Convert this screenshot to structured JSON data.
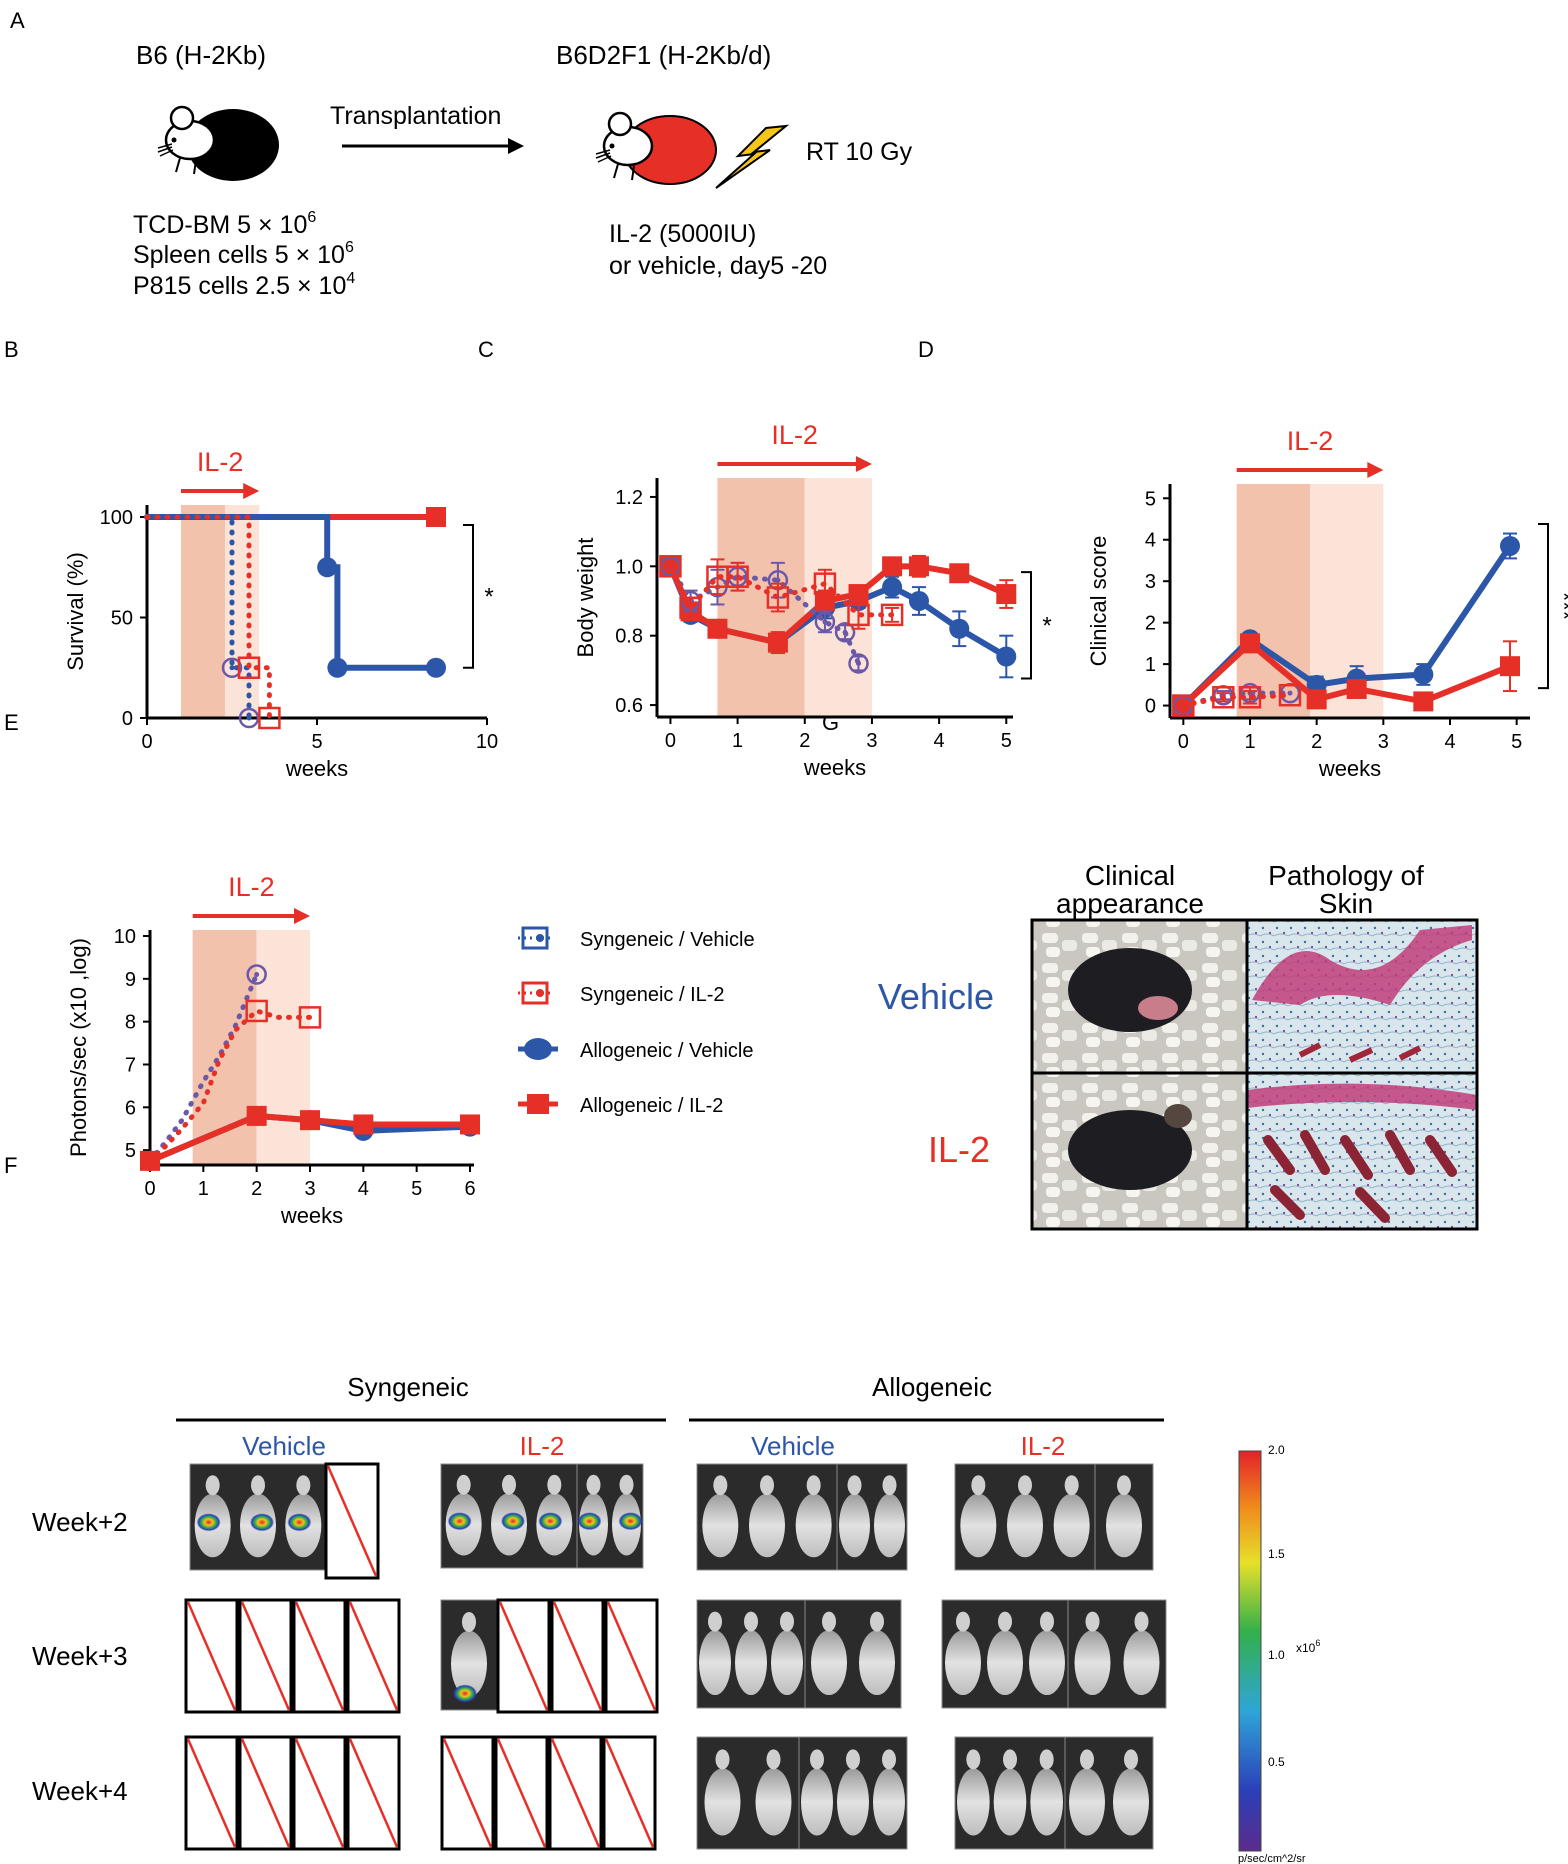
{
  "colors": {
    "blue": "#2c56a8",
    "red": "#e63027",
    "purple": "#6b59a8",
    "shade_dark": "#f3c2ad",
    "shade_light": "#fbe3d8",
    "bolt": "#f5c518"
  },
  "panel_letters": {
    "a": "A",
    "b": "B",
    "c": "C",
    "d": "D",
    "e": "E",
    "f": "F",
    "g": "G"
  },
  "schematic": {
    "donor": "B6 (H-2Kb)",
    "recipient": "B6D2F1 (H-2Kb/d)",
    "arrow_label": "Transplantation",
    "radiation": "RT 10 Gy",
    "cells": [
      {
        "name": "TCD-BM 5 × 10",
        "exp": "6"
      },
      {
        "name": "Spleen cells 5 × 10",
        "exp": "6"
      },
      {
        "name": "P815 cells 2.5 × 10",
        "exp": "4"
      }
    ],
    "treatment_lines": [
      "IL-2 (5000IU)",
      "or vehicle, day5 -20"
    ]
  },
  "chart_data": [
    {
      "id": "B",
      "type": "line",
      "title": "IL-2",
      "xlabel": "weeks",
      "ylabel": "Survival (%)",
      "xlim": [
        0,
        10
      ],
      "ylim": [
        0,
        100
      ],
      "xticks": [
        "0",
        "5",
        "10"
      ],
      "yticks": [
        "0",
        "50",
        "100"
      ],
      "significance": "*",
      "il2_window": {
        "dark": [
          1,
          2.3
        ],
        "light": [
          2.3,
          3.3
        ],
        "arrow": [
          1,
          3.3
        ]
      },
      "series": [
        {
          "name": "Allogeneic / IL-2",
          "style": "step-solid",
          "marker": "square-filled",
          "x": [
            0,
            8.5
          ],
          "y": [
            100,
            100
          ]
        },
        {
          "name": "Allogeneic / Vehicle",
          "style": "step-solid",
          "marker": "circle-filled",
          "x": [
            0,
            5.3,
            5.6,
            8.5
          ],
          "y": [
            100,
            75,
            25,
            25
          ]
        },
        {
          "name": "Syngeneic / Vehicle",
          "style": "step-dotted",
          "marker": "circle-open",
          "x": [
            0,
            2.5,
            3.0
          ],
          "y": [
            100,
            25,
            0
          ]
        },
        {
          "name": "Syngeneic / IL-2",
          "style": "step-dotted",
          "marker": "square-open",
          "x": [
            0,
            3.0,
            3.6
          ],
          "y": [
            100,
            25,
            0
          ]
        }
      ]
    },
    {
      "id": "C",
      "type": "line",
      "title": "IL-2",
      "xlabel": "weeks",
      "ylabel": "Body weight",
      "xlim": [
        -0.2,
        5.1
      ],
      "ylim": [
        0.58,
        1.22
      ],
      "xticks": [
        "0",
        "1",
        "2",
        "3",
        "4",
        "5"
      ],
      "yticks": [
        "0.6",
        "0.8",
        "1.0",
        "1.2"
      ],
      "significance": "*",
      "il2_window": {
        "dark": [
          0.7,
          2.0
        ],
        "light": [
          2.0,
          3.0
        ],
        "arrow": [
          0.7,
          3.0
        ]
      },
      "series": [
        {
          "name": "Allogeneic / Vehicle",
          "x": [
            0,
            0.3,
            0.7,
            1.6,
            2.3,
            2.8,
            3.3,
            3.7,
            4.3,
            5.0
          ],
          "y": [
            1.0,
            0.86,
            0.82,
            0.78,
            0.88,
            0.9,
            0.94,
            0.9,
            0.82,
            0.74
          ],
          "err": [
            0.01,
            0.02,
            0.02,
            0.03,
            0.03,
            0.02,
            0.03,
            0.04,
            0.05,
            0.06
          ]
        },
        {
          "name": "Allogeneic / IL-2",
          "x": [
            0,
            0.3,
            0.7,
            1.6,
            2.3,
            2.8,
            3.3,
            3.7,
            4.3,
            5.0
          ],
          "y": [
            1.0,
            0.87,
            0.82,
            0.78,
            0.9,
            0.92,
            1.0,
            1.0,
            0.98,
            0.92
          ],
          "err": [
            0.01,
            0.02,
            0.02,
            0.03,
            0.03,
            0.02,
            0.02,
            0.03,
            0.02,
            0.04
          ]
        },
        {
          "name": "Syngeneic / Vehicle",
          "x": [
            0,
            0.3,
            0.7,
            1.0,
            1.6,
            2.3,
            2.6,
            2.8
          ],
          "y": [
            1.0,
            0.9,
            0.94,
            0.97,
            0.96,
            0.84,
            0.81,
            0.72
          ],
          "err": [
            0.01,
            0.03,
            0.05,
            0.04,
            0.05,
            0.03,
            0.02,
            0.02
          ]
        },
        {
          "name": "Syngeneic / IL-2",
          "x": [
            0,
            0.3,
            0.7,
            1.0,
            1.6,
            2.3,
            2.8,
            3.3
          ],
          "y": [
            1.0,
            0.88,
            0.97,
            0.97,
            0.91,
            0.95,
            0.86,
            0.86
          ],
          "err": [
            0.01,
            0.03,
            0.05,
            0.04,
            0.04,
            0.04,
            0.04,
            0.02
          ]
        }
      ]
    },
    {
      "id": "D",
      "type": "line",
      "title": "IL-2",
      "xlabel": "weeks",
      "ylabel": "Clinical score",
      "xlim": [
        -0.2,
        5.2
      ],
      "ylim": [
        -0.3,
        5.2
      ],
      "xticks": [
        "0",
        "1",
        "2",
        "3",
        "4",
        "5"
      ],
      "yticks": [
        "0",
        "1",
        "2",
        "3",
        "4",
        "5"
      ],
      "significance": "***",
      "il2_window": {
        "dark": [
          0.8,
          1.9
        ],
        "light": [
          1.9,
          3.0
        ],
        "arrow": [
          0.8,
          3.0
        ]
      },
      "series": [
        {
          "name": "Allogeneic / Vehicle",
          "x": [
            0,
            1.0,
            2.0,
            2.6,
            3.6,
            4.9
          ],
          "y": [
            0,
            1.6,
            0.5,
            0.65,
            0.75,
            3.85
          ],
          "err": [
            0.05,
            0.15,
            0.2,
            0.3,
            0.25,
            0.3
          ]
        },
        {
          "name": "Allogeneic / IL-2",
          "x": [
            0,
            1.0,
            2.0,
            2.6,
            3.6,
            4.9
          ],
          "y": [
            0,
            1.5,
            0.15,
            0.4,
            0.1,
            0.95
          ],
          "err": [
            0.05,
            0.15,
            0.2,
            0.2,
            0.15,
            0.6
          ]
        },
        {
          "name": "Syngeneic / Vehicle",
          "x": [
            0,
            0.6,
            1.0,
            1.6
          ],
          "y": [
            0,
            0.25,
            0.3,
            0.3
          ],
          "err": [
            0,
            0.1,
            0.15,
            0
          ]
        },
        {
          "name": "Syngeneic / IL-2",
          "x": [
            0,
            0.6,
            1.0,
            1.6
          ],
          "y": [
            0,
            0.2,
            0.2,
            0.25
          ],
          "err": [
            0,
            0.1,
            0.15,
            0
          ]
        }
      ]
    },
    {
      "id": "E",
      "type": "line",
      "title": "IL-2",
      "xlabel": "weeks",
      "ylabel": "Photons/sec (x10 ,log)",
      "xlim": [
        0,
        6
      ],
      "ylim": [
        4.7,
        10
      ],
      "xticks": [
        "0",
        "1",
        "2",
        "3",
        "4",
        "5",
        "6"
      ],
      "yticks": [
        "5",
        "6",
        "7",
        "8",
        "9",
        "10"
      ],
      "il2_window": {
        "dark": [
          0.8,
          2.0
        ],
        "light": [
          2.0,
          3.0
        ],
        "arrow": [
          0.8,
          3.0
        ]
      },
      "series": [
        {
          "name": "Syngeneic / Vehicle",
          "x": [
            0,
            0.3,
            0.6,
            1.0,
            1.3,
            1.6,
            2.0
          ],
          "y": [
            4.75,
            5.2,
            5.7,
            6.6,
            7.2,
            7.9,
            9.1
          ]
        },
        {
          "name": "Syngeneic / IL-2",
          "x": [
            0,
            0.3,
            0.6,
            1.0,
            1.3,
            1.6,
            2.0,
            2.4,
            3.0
          ],
          "y": [
            4.75,
            5.1,
            5.5,
            6.1,
            7.1,
            7.8,
            8.25,
            8.1,
            8.1
          ]
        },
        {
          "name": "Allogeneic / Vehicle",
          "x": [
            0,
            2,
            3,
            4,
            6
          ],
          "y": [
            4.75,
            5.8,
            5.7,
            5.45,
            5.55
          ]
        },
        {
          "name": "Allogeneic / IL-2",
          "x": [
            0,
            2,
            3,
            4,
            6
          ],
          "y": [
            4.75,
            5.8,
            5.7,
            5.6,
            5.6
          ]
        }
      ]
    }
  ],
  "legend": [
    {
      "label": "Syngeneic / Vehicle",
      "color": "#2c56a8",
      "marker": "square-open-dot"
    },
    {
      "label": "Syngeneic / IL-2",
      "color": "#e63027",
      "marker": "square-open-dot"
    },
    {
      "label": "Allogeneic / Vehicle",
      "color": "#2c56a8",
      "marker": "circle-filled"
    },
    {
      "label": "Allogeneic / IL-2",
      "color": "#e63027",
      "marker": "square-filled"
    }
  ],
  "panel_g": {
    "col1": [
      "Clinical",
      "appearance"
    ],
    "col2": [
      "Pathology of",
      "Skin"
    ],
    "row1": "Vehicle",
    "row2": "IL-2"
  },
  "panel_f": {
    "group_syn": "Syngeneic",
    "group_allo": "Allogeneic",
    "col_labels": [
      "Vehicle",
      "IL-2",
      "Vehicle",
      "IL-2"
    ],
    "rows": [
      "Week+2",
      "Week+3",
      "Week+4"
    ],
    "colorbar": {
      "ticks": [
        "2.0",
        "1.5",
        "1.0",
        "0.5"
      ],
      "multiplier": "x10",
      "multiplier_exp": "6",
      "unit": "p/sec/cm^2/sr"
    }
  }
}
